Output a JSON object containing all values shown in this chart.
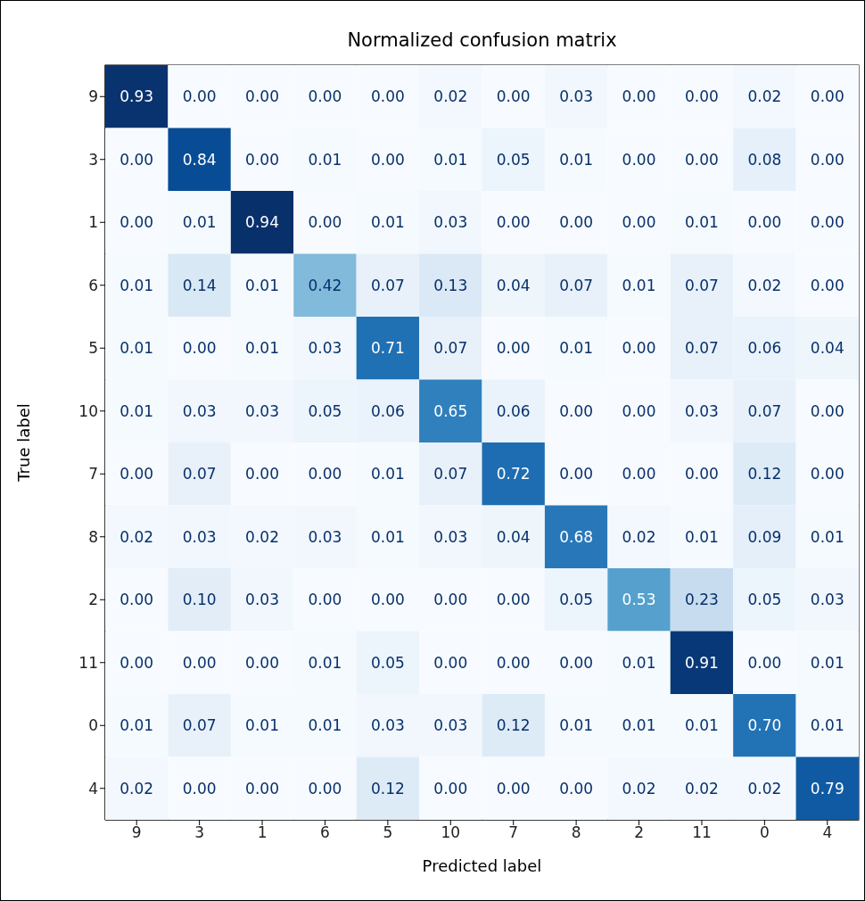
{
  "chart_data": {
    "type": "heatmap",
    "title": "Normalized confusion matrix",
    "xlabel": "Predicted label",
    "ylabel": "True label",
    "categories": [
      "9",
      "3",
      "1",
      "6",
      "5",
      "10",
      "7",
      "8",
      "2",
      "11",
      "0",
      "4"
    ],
    "y_categories": [
      "9",
      "3",
      "1",
      "6",
      "5",
      "10",
      "7",
      "8",
      "2",
      "11",
      "0",
      "4"
    ],
    "cells": [
      [
        0.93,
        0.0,
        0.0,
        0.0,
        0.0,
        0.02,
        0.0,
        0.03,
        0.0,
        0.0,
        0.02,
        0.0
      ],
      [
        0.0,
        0.84,
        0.0,
        0.01,
        0.0,
        0.01,
        0.05,
        0.01,
        0.0,
        0.0,
        0.08,
        0.0
      ],
      [
        0.0,
        0.01,
        0.94,
        0.0,
        0.01,
        0.03,
        0.0,
        0.0,
        0.0,
        0.01,
        0.0,
        0.0
      ],
      [
        0.01,
        0.14,
        0.01,
        0.42,
        0.07,
        0.13,
        0.04,
        0.07,
        0.01,
        0.07,
        0.02,
        0.0
      ],
      [
        0.01,
        0.0,
        0.01,
        0.03,
        0.71,
        0.07,
        0.0,
        0.01,
        0.0,
        0.07,
        0.06,
        0.04
      ],
      [
        0.01,
        0.03,
        0.03,
        0.05,
        0.06,
        0.65,
        0.06,
        0.0,
        0.0,
        0.03,
        0.07,
        0.0
      ],
      [
        0.0,
        0.07,
        0.0,
        0.0,
        0.01,
        0.07,
        0.72,
        0.0,
        0.0,
        0.0,
        0.12,
        0.0
      ],
      [
        0.02,
        0.03,
        0.02,
        0.03,
        0.01,
        0.03,
        0.04,
        0.68,
        0.02,
        0.01,
        0.09,
        0.01
      ],
      [
        0.0,
        0.1,
        0.03,
        0.0,
        0.0,
        0.0,
        0.0,
        0.05,
        0.53,
        0.23,
        0.05,
        0.03
      ],
      [
        0.0,
        0.0,
        0.0,
        0.01,
        0.05,
        0.0,
        0.0,
        0.0,
        0.01,
        0.91,
        0.0,
        0.01
      ],
      [
        0.01,
        0.07,
        0.01,
        0.01,
        0.03,
        0.03,
        0.12,
        0.01,
        0.01,
        0.01,
        0.7,
        0.01
      ],
      [
        0.02,
        0.0,
        0.0,
        0.0,
        0.12,
        0.0,
        0.0,
        0.0,
        0.02,
        0.02,
        0.02,
        0.79
      ]
    ],
    "cell_labels": [
      [
        "0.93",
        "0.00",
        "0.00",
        "0.00",
        "0.00",
        "0.02",
        "0.00",
        "0.03",
        "0.00",
        "0.00",
        "0.02",
        "0.00"
      ],
      [
        "0.00",
        "0.84",
        "0.00",
        "0.01",
        "0.00",
        "0.01",
        "0.05",
        "0.01",
        "0.00",
        "0.00",
        "0.08",
        "0.00"
      ],
      [
        "0.00",
        "0.01",
        "0.94",
        "0.00",
        "0.01",
        "0.03",
        "0.00",
        "0.00",
        "0.00",
        "0.01",
        "0.00",
        "0.00"
      ],
      [
        "0.01",
        "0.14",
        "0.01",
        "0.42",
        "0.07",
        "0.13",
        "0.04",
        "0.07",
        "0.01",
        "0.07",
        "0.02",
        "0.00"
      ],
      [
        "0.01",
        "0.00",
        "0.01",
        "0.03",
        "0.71",
        "0.07",
        "0.00",
        "0.01",
        "0.00",
        "0.07",
        "0.06",
        "0.04"
      ],
      [
        "0.01",
        "0.03",
        "0.03",
        "0.05",
        "0.06",
        "0.65",
        "0.06",
        "0.00",
        "0.00",
        "0.03",
        "0.07",
        "0.00"
      ],
      [
        "0.00",
        "0.07",
        "0.00",
        "0.00",
        "0.01",
        "0.07",
        "0.72",
        "0.00",
        "0.00",
        "0.00",
        "0.12",
        "0.00"
      ],
      [
        "0.02",
        "0.03",
        "0.02",
        "0.03",
        "0.01",
        "0.03",
        "0.04",
        "0.68",
        "0.02",
        "0.01",
        "0.09",
        "0.01"
      ],
      [
        "0.00",
        "0.10",
        "0.03",
        "0.00",
        "0.00",
        "0.00",
        "0.00",
        "0.05",
        "0.53",
        "0.23",
        "0.05",
        "0.03"
      ],
      [
        "0.00",
        "0.00",
        "0.00",
        "0.01",
        "0.05",
        "0.00",
        "0.00",
        "0.00",
        "0.01",
        "0.91",
        "0.00",
        "0.01"
      ],
      [
        "0.01",
        "0.07",
        "0.01",
        "0.01",
        "0.03",
        "0.03",
        "0.12",
        "0.01",
        "0.01",
        "0.01",
        "0.70",
        "0.01"
      ],
      [
        "0.02",
        "0.00",
        "0.00",
        "0.00",
        "0.12",
        "0.00",
        "0.00",
        "0.00",
        "0.02",
        "0.02",
        "0.02",
        "0.79"
      ]
    ]
  }
}
